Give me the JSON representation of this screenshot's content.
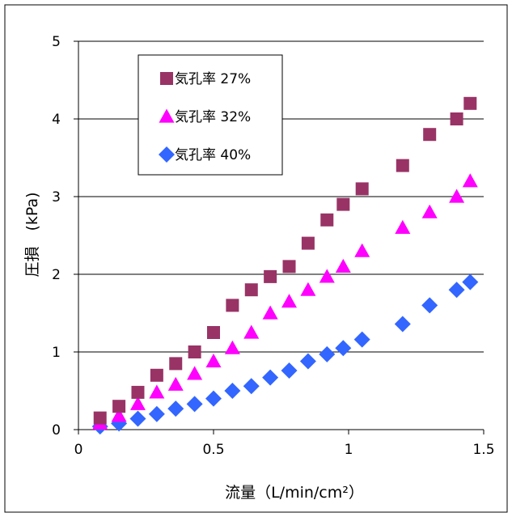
{
  "chart_data": {
    "type": "scatter",
    "title": "",
    "xlabel": "流量（L/min/cm²）",
    "ylabel": "圧損　(kPa)",
    "xlim": [
      0,
      1.5
    ],
    "ylim": [
      0,
      5
    ],
    "xticks": [
      "0",
      "0.5",
      "1",
      "1.5"
    ],
    "yticks": [
      "0",
      "1",
      "2",
      "3",
      "4",
      "5"
    ],
    "grid": "horizontal",
    "legend_position": "top-left",
    "series": [
      {
        "name": "気孔率 27%",
        "marker": "square",
        "color": "#993366",
        "x": [
          0.08,
          0.15,
          0.22,
          0.29,
          0.36,
          0.43,
          0.5,
          0.57,
          0.64,
          0.71,
          0.78,
          0.85,
          0.92,
          0.98,
          1.05,
          1.2,
          1.3,
          1.4,
          1.45
        ],
        "y": [
          0.15,
          0.3,
          0.48,
          0.7,
          0.85,
          1.0,
          1.25,
          1.6,
          1.8,
          1.97,
          2.1,
          2.4,
          2.7,
          2.9,
          3.1,
          3.4,
          3.8,
          4.0,
          4.2
        ]
      },
      {
        "name": "気孔率 32%",
        "marker": "triangle",
        "color": "#ff00ff",
        "x": [
          0.08,
          0.15,
          0.22,
          0.29,
          0.36,
          0.43,
          0.5,
          0.57,
          0.64,
          0.71,
          0.78,
          0.85,
          0.92,
          0.98,
          1.05,
          1.2,
          1.3,
          1.4,
          1.45
        ],
        "y": [
          0.08,
          0.18,
          0.33,
          0.48,
          0.58,
          0.72,
          0.88,
          1.05,
          1.25,
          1.5,
          1.65,
          1.8,
          1.97,
          2.1,
          2.3,
          2.6,
          2.8,
          3.0,
          3.2
        ]
      },
      {
        "name": "気孔率 40%",
        "marker": "diamond",
        "color": "#3366ff",
        "x": [
          0.08,
          0.15,
          0.22,
          0.29,
          0.36,
          0.43,
          0.5,
          0.57,
          0.64,
          0.71,
          0.78,
          0.85,
          0.92,
          0.98,
          1.05,
          1.2,
          1.3,
          1.4,
          1.45
        ],
        "y": [
          0.04,
          0.08,
          0.14,
          0.2,
          0.27,
          0.33,
          0.4,
          0.5,
          0.56,
          0.67,
          0.76,
          0.88,
          0.97,
          1.05,
          1.16,
          1.36,
          1.6,
          1.8,
          1.9
        ]
      }
    ]
  }
}
